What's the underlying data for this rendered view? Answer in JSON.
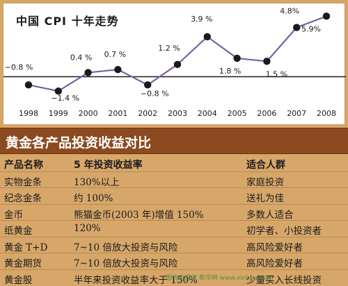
{
  "chart_data": {
    "type": "line",
    "title": "中国 CPI 十年走势",
    "x": [
      "1998",
      "1999",
      "2000",
      "2001",
      "2002",
      "2003",
      "2004",
      "2005",
      "2006",
      "2007",
      "2008"
    ],
    "values": [
      -0.8,
      -1.4,
      0.4,
      0.7,
      -0.8,
      1.2,
      3.9,
      1.8,
      1.5,
      4.8,
      5.9
    ],
    "data_labels": [
      "−0.8 %",
      "−1.4 %",
      "0.4 %",
      "0.7 %",
      "−0.8 %",
      "1.2 %",
      "3.9 %",
      "1.8 %",
      "1.5 %",
      "4.8%",
      "5.9%"
    ],
    "ylim": [
      -2.2,
      6.6
    ],
    "baseline": 0,
    "xlabel": "",
    "ylabel": "",
    "grid": false,
    "colors": {
      "line": "#7a5fa3",
      "marker": "#1a1a1a",
      "axis": "#1a1a1a"
    }
  },
  "banner": {
    "title": "黄金各产品投资收益对比"
  },
  "table": {
    "headers": [
      "产品名称",
      "5 年投资收益率",
      "适合人群"
    ],
    "rows": [
      [
        "实物金条",
        "130%以上",
        "家庭投资"
      ],
      [
        "纪念金条",
        "约 100%",
        "送礼为佳"
      ],
      [
        "金币",
        "熊猫金币(2003 年)增值 150%",
        "多数人适合"
      ],
      [
        "纸黄金",
        "120%",
        "初学者、小投资者"
      ],
      [
        "黄金 T+D",
        "7~10 倍放大投资与风险",
        "高风险爱好者"
      ],
      [
        "黄金期货",
        "7~10 倍放大投资与风险",
        "高风险爱好者"
      ],
      [
        "黄金股",
        "半年来投资收益率大于 150%",
        "少量买入长线投资"
      ]
    ]
  },
  "watermark": "图片由提供 新华网 www.xinhua.com"
}
